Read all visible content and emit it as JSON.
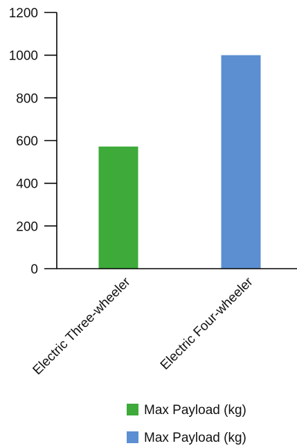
{
  "chart_data": {
    "type": "bar",
    "title": "",
    "xlabel": "",
    "ylabel": "",
    "categories": [
      "Electric Three-wheeler",
      "Electric Four-wheeler"
    ],
    "values": [
      572,
      1000
    ],
    "bar_colors": [
      "#3daa3a",
      "#5b8fd1"
    ],
    "ylim": [
      0,
      1200
    ],
    "yticks": [
      0,
      200,
      400,
      600,
      800,
      1000,
      1200
    ],
    "grid": false,
    "legend_position": "bottom-right",
    "legend": [
      {
        "label": "Max Payload (kg)",
        "color": "#3daa3a"
      },
      {
        "label": "Max Payload (kg)",
        "color": "#5b8fd1"
      }
    ]
  }
}
